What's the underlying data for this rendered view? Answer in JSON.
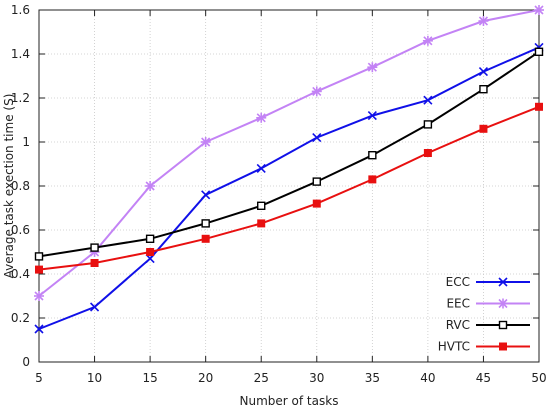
{
  "chart_data": {
    "type": "line",
    "title": "",
    "xlabel": "Number of tasks",
    "ylabel": "Average task exection time (S)",
    "x": [
      5,
      10,
      15,
      20,
      25,
      30,
      35,
      40,
      45,
      50
    ],
    "xlim": [
      5,
      50
    ],
    "ylim": [
      0,
      1.6
    ],
    "x_ticks": [
      "5",
      "10",
      "15",
      "20",
      "25",
      "30",
      "35",
      "40",
      "45",
      "50"
    ],
    "y_ticks": [
      "0",
      "0.2",
      "0.4",
      "0.6",
      "0.8",
      "1",
      "1.2",
      "1.4",
      "1.6"
    ],
    "grid": true,
    "legend_position": "bottom-right",
    "series": [
      {
        "name": "ECC",
        "color": "#1010e8",
        "marker": "x",
        "values": [
          0.15,
          0.25,
          0.47,
          0.76,
          0.88,
          1.02,
          1.12,
          1.19,
          1.32,
          1.43
        ]
      },
      {
        "name": "EEC",
        "color": "#c383f5",
        "marker": "asterisk",
        "values": [
          0.3,
          0.5,
          0.8,
          1.0,
          1.11,
          1.23,
          1.34,
          1.46,
          1.55,
          1.6
        ]
      },
      {
        "name": "RVC",
        "color": "#000000",
        "marker": "open-square",
        "values": [
          0.48,
          0.52,
          0.56,
          0.63,
          0.71,
          0.82,
          0.94,
          1.08,
          1.24,
          1.41
        ]
      },
      {
        "name": "HVTC",
        "color": "#e81010",
        "marker": "filled-square",
        "values": [
          0.42,
          0.45,
          0.5,
          0.56,
          0.63,
          0.72,
          0.83,
          0.95,
          1.06,
          1.16
        ]
      }
    ]
  }
}
